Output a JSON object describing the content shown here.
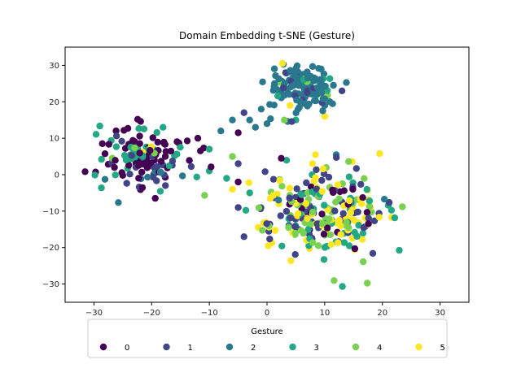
{
  "chart_data": {
    "type": "scatter",
    "title": "Domain Embedding t-SNE (Gesture)",
    "xlabel": "",
    "ylabel": "",
    "xlim": [
      -35,
      35
    ],
    "ylim": [
      -35,
      35
    ],
    "xticks": [
      -30,
      -20,
      -10,
      0,
      10,
      20,
      30
    ],
    "yticks": [
      -30,
      -20,
      -10,
      0,
      10,
      20,
      30
    ],
    "grid": false,
    "legend": {
      "title": "Gesture",
      "placement": "below plot, one row",
      "labels": [
        "0",
        "1",
        "2",
        "3",
        "4",
        "5"
      ]
    },
    "colors": [
      "#440154",
      "#414487",
      "#2a788e",
      "#22a884",
      "#7ad151",
      "#fde725"
    ],
    "clusters": [
      {
        "center": [
          -21,
          5
        ],
        "spread": [
          4.2,
          4.8
        ],
        "counts": [
          72,
          22,
          12,
          38,
          4,
          2
        ]
      },
      {
        "center": [
          6,
          24
        ],
        "spread": [
          3.0,
          3.2
        ],
        "counts": [
          0,
          12,
          110,
          8,
          3,
          4
        ]
      },
      {
        "center": [
          9,
          -10
        ],
        "spread": [
          6.0,
          6.5
        ],
        "counts": [
          22,
          60,
          6,
          45,
          60,
          80
        ]
      }
    ],
    "bridge_points": [
      {
        "x": -8,
        "y": 12,
        "group": 2
      },
      {
        "x": -5,
        "y": 11.5,
        "group": 0
      },
      {
        "x": -6,
        "y": 15,
        "group": 2
      },
      {
        "x": -3,
        "y": 15,
        "group": 2
      },
      {
        "x": -1,
        "y": 18,
        "group": 2
      },
      {
        "x": -4,
        "y": 17,
        "group": 1
      },
      {
        "x": 0,
        "y": 14,
        "group": 2
      },
      {
        "x": -2,
        "y": 13,
        "group": 2
      },
      {
        "x": -12,
        "y": 10,
        "group": 0
      },
      {
        "x": -10,
        "y": 7,
        "group": 3
      },
      {
        "x": -6,
        "y": 5,
        "group": 4
      },
      {
        "x": -5,
        "y": 3,
        "group": 1
      },
      {
        "x": -7,
        "y": -1,
        "group": 3
      },
      {
        "x": -5,
        "y": -2,
        "group": 0
      },
      {
        "x": -6,
        "y": -4,
        "group": 5
      },
      {
        "x": -5,
        "y": -9,
        "group": 1
      },
      {
        "x": -4,
        "y": -17,
        "group": 1
      },
      {
        "x": -3,
        "y": -5,
        "group": 3
      },
      {
        "x": 10,
        "y": 16,
        "group": 5
      },
      {
        "x": 10,
        "y": 21,
        "group": 5
      },
      {
        "x": 10,
        "y": 19,
        "group": 2
      },
      {
        "x": 7,
        "y": 23,
        "group": 1
      },
      {
        "x": 13,
        "y": 23,
        "group": 1
      },
      {
        "x": 5,
        "y": 15,
        "group": 3
      },
      {
        "x": 3,
        "y": 15,
        "group": 4
      },
      {
        "x": 4,
        "y": 19,
        "group": 5
      }
    ]
  }
}
